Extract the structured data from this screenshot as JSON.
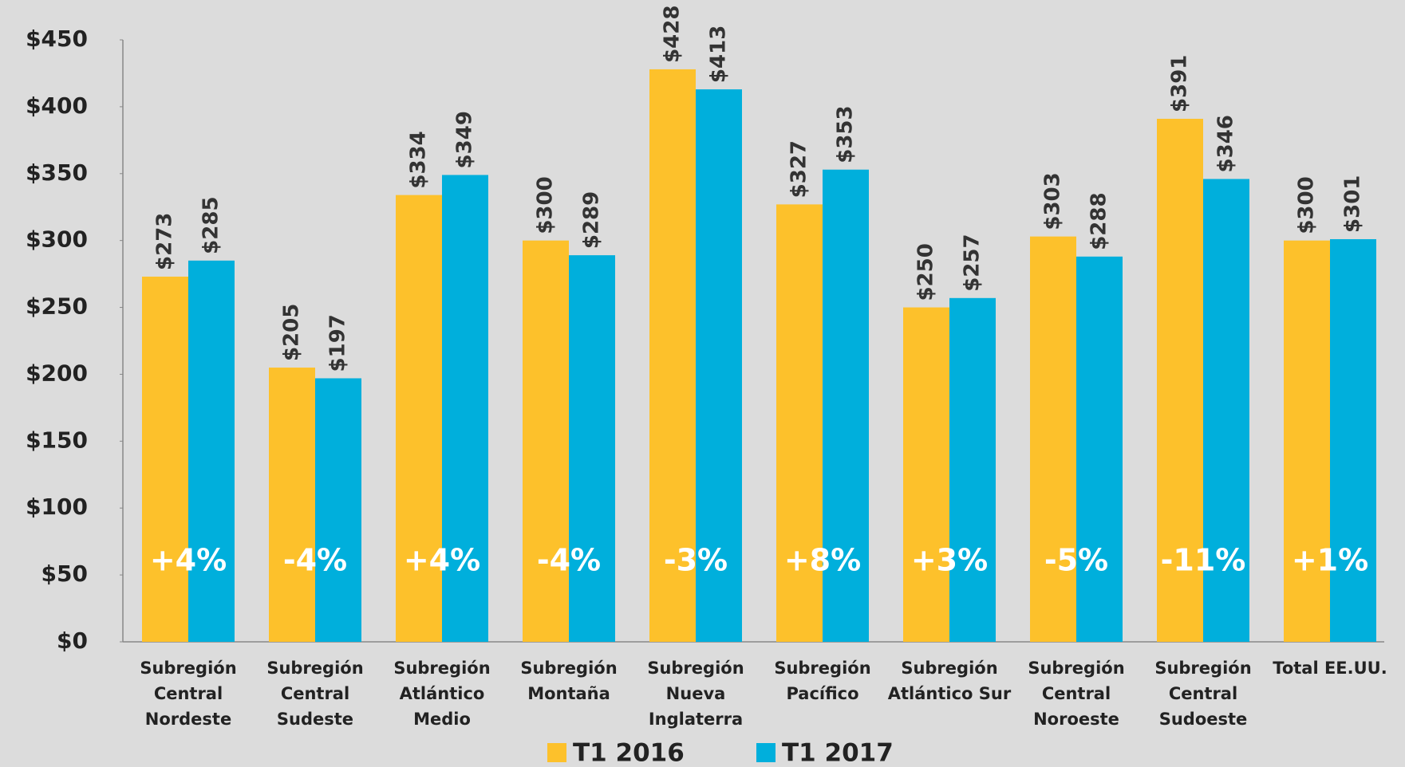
{
  "chart_data": {
    "type": "bar",
    "categories": [
      "Subregión Central Nordeste",
      "Subregión Central Sudeste",
      "Subregión Atlántico Medio",
      "Subregión Montaña",
      "Subregión Nueva Inglaterra",
      "Subregión Pacífico",
      "Subregión Atlántico Sur",
      "Subregión Central Noroeste",
      "Subregión Central Sudoeste",
      "Total EE.UU."
    ],
    "series": [
      {
        "name": "T1 2016",
        "color": "#fdc12b",
        "values": [
          273,
          205,
          334,
          300,
          428,
          327,
          250,
          303,
          391,
          300
        ],
        "value_labels": [
          "$273",
          "$205",
          "$334",
          "$300",
          "$428",
          "$327",
          "$250",
          "$303",
          "$391",
          "$300"
        ]
      },
      {
        "name": "T1 2017",
        "color": "#00afdc",
        "values": [
          285,
          197,
          349,
          289,
          413,
          353,
          257,
          288,
          346,
          301
        ],
        "value_labels": [
          "$285",
          "$197",
          "$349",
          "$289",
          "$413",
          "$353",
          "$257",
          "$288",
          "$346",
          "$301"
        ]
      }
    ],
    "changes": [
      "+4%",
      "-4%",
      "+4%",
      "-4%",
      "-3%",
      "+8%",
      "+3%",
      "-5%",
      "-11%",
      "+1%"
    ],
    "ylim": [
      0,
      450
    ],
    "yticks": [
      {
        "value": 0,
        "label": "$0"
      },
      {
        "value": 50,
        "label": "$50"
      },
      {
        "value": 100,
        "label": "$100"
      },
      {
        "value": 150,
        "label": "$150"
      },
      {
        "value": 200,
        "label": "$200"
      },
      {
        "value": 250,
        "label": "$250"
      },
      {
        "value": 300,
        "label": "$300"
      },
      {
        "value": 350,
        "label": "$350"
      },
      {
        "value": 400,
        "label": "$400"
      },
      {
        "value": 450,
        "label": "$450"
      }
    ],
    "legend": "bottom"
  }
}
